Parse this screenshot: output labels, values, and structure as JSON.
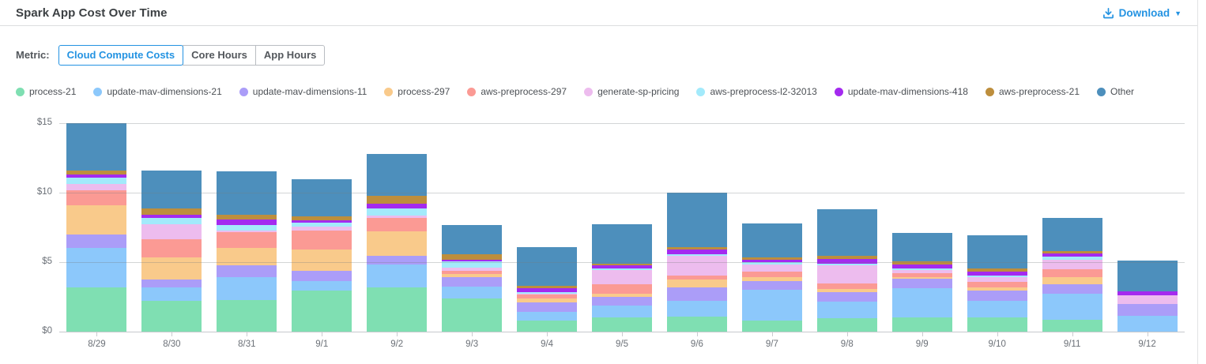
{
  "header": {
    "title": "Spark App Cost Over Time",
    "download": {
      "label": "Download",
      "caret": "▼"
    }
  },
  "metric": {
    "label": "Metric:",
    "options": [
      {
        "label": "Cloud Compute Costs",
        "selected": true
      },
      {
        "label": "Core Hours",
        "selected": false
      },
      {
        "label": "App Hours",
        "selected": false
      }
    ]
  },
  "colors": {
    "accent": "#2493E2",
    "title_text": "#3c4043",
    "tab_text": "#53575c",
    "legend_text": "#4c5055",
    "axis_text": "#6b7077",
    "grid_line": "#d4d6d9",
    "axis_line": "#c6c9cd",
    "header_divider": "#dcdedf"
  },
  "chart_data": {
    "type": "bar",
    "stacked": true,
    "title": "Spark App Cost Over Time",
    "xlabel": "",
    "ylabel": "",
    "y_unit": "USD",
    "ylim": [
      0,
      15.7
    ],
    "grid": true,
    "legend_position": "top",
    "y_ticks": [
      {
        "value": 0,
        "label": "$0"
      },
      {
        "value": 5,
        "label": "$5"
      },
      {
        "value": 10,
        "label": "$10"
      },
      {
        "value": 15,
        "label": "$15"
      }
    ],
    "categories": [
      "8/29",
      "8/30",
      "8/31",
      "9/1",
      "9/2",
      "9/3",
      "9/4",
      "9/5",
      "9/6",
      "9/7",
      "9/8",
      "9/9",
      "9/10",
      "9/11",
      "9/12"
    ],
    "series": [
      {
        "name": "process-21",
        "color": "#7FDFB2",
        "values": [
          3.2,
          2.2,
          2.25,
          2.95,
          3.2,
          2.4,
          0.8,
          1.05,
          1.1,
          0.8,
          0.95,
          1.05,
          1.05,
          0.85,
          0.0
        ]
      },
      {
        "name": "update-mav-dimensions-21",
        "color": "#8CC8FB",
        "values": [
          2.85,
          1.0,
          1.7,
          0.7,
          1.65,
          0.85,
          0.6,
          0.8,
          1.1,
          2.2,
          1.2,
          2.1,
          1.15,
          1.9,
          1.15
        ]
      },
      {
        "name": "update-mav-dimensions-11",
        "color": "#AB9DF8",
        "values": [
          0.95,
          0.55,
          0.85,
          0.75,
          0.6,
          0.7,
          0.7,
          0.65,
          1.0,
          0.65,
          0.7,
          0.65,
          0.75,
          0.65,
          0.85
        ]
      },
      {
        "name": "process-297",
        "color": "#F9CA8B",
        "values": [
          2.1,
          1.6,
          1.25,
          1.5,
          1.75,
          0.2,
          0.3,
          0.25,
          0.55,
          0.3,
          0.2,
          0.1,
          0.25,
          0.55,
          0.0
        ]
      },
      {
        "name": "aws-preprocess-297",
        "color": "#FB9A94",
        "values": [
          1.1,
          1.3,
          1.1,
          1.35,
          1.0,
          0.2,
          0.25,
          0.65,
          0.3,
          0.35,
          0.4,
          0.3,
          0.4,
          0.55,
          0.0
        ]
      },
      {
        "name": "generate-sp-pricing",
        "color": "#EDBCEE",
        "values": [
          0.45,
          1.1,
          0.15,
          0.3,
          0.15,
          0.25,
          0.1,
          1.05,
          1.4,
          0.55,
          1.3,
          0.25,
          0.3,
          0.7,
          0.6
        ]
      },
      {
        "name": "aws-preprocess-l2-32013",
        "color": "#A3EAFB",
        "values": [
          0.45,
          0.45,
          0.35,
          0.3,
          0.5,
          0.45,
          0.1,
          0.1,
          0.15,
          0.15,
          0.15,
          0.1,
          0.15,
          0.2,
          0.0
        ]
      },
      {
        "name": "update-mav-dimensions-418",
        "color": "#A42AEF",
        "values": [
          0.2,
          0.2,
          0.45,
          0.15,
          0.35,
          0.1,
          0.3,
          0.2,
          0.3,
          0.15,
          0.35,
          0.3,
          0.3,
          0.2,
          0.3
        ]
      },
      {
        "name": "aws-preprocess-21",
        "color": "#BD8E3D",
        "values": [
          0.3,
          0.45,
          0.3,
          0.3,
          0.6,
          0.45,
          0.15,
          0.15,
          0.2,
          0.2,
          0.2,
          0.2,
          0.2,
          0.2,
          0.0
        ]
      },
      {
        "name": "Other",
        "color": "#4D8FBC",
        "values": [
          3.4,
          2.75,
          3.15,
          2.65,
          3.0,
          2.1,
          2.8,
          2.85,
          3.9,
          2.45,
          3.35,
          2.05,
          2.4,
          2.4,
          2.2
        ]
      }
    ]
  }
}
